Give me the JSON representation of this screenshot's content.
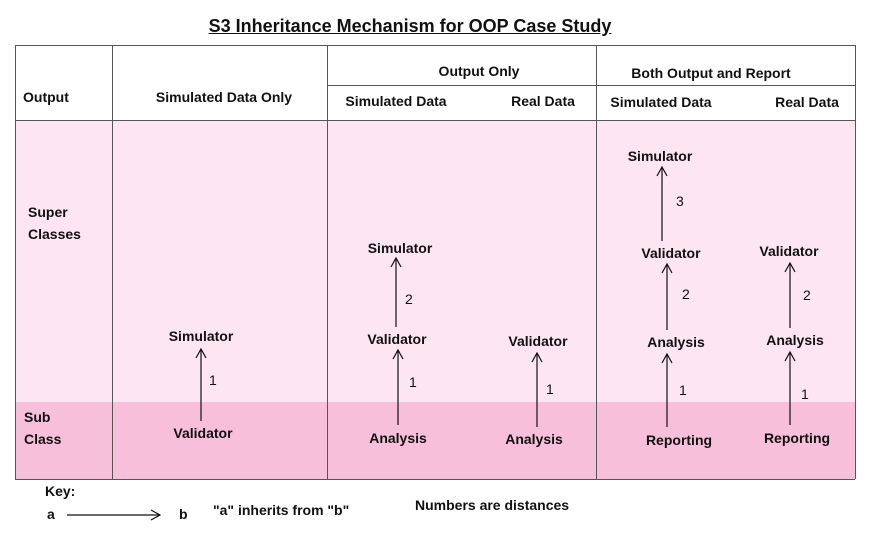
{
  "title": "S3 Inheritance Mechanism for OOP Case Study",
  "header": {
    "row_label": "Output",
    "groups": [
      "Output Only",
      "Both Output and Report"
    ],
    "columns": [
      "Simulated Data Only",
      "Simulated Data",
      "Real Data",
      "Simulated Data",
      "Real Data"
    ]
  },
  "rows": {
    "super": [
      "Super",
      "Classes"
    ],
    "sub": [
      "Sub",
      "Class"
    ]
  },
  "nodes": {
    "c1_simulator": "Simulator",
    "c1_validator": "Validator",
    "c2_simulator": "Simulator",
    "c2_validator": "Validator",
    "c2_analysis": "Analysis",
    "c3_validator": "Validator",
    "c3_analysis": "Analysis",
    "c4_simulator": "Simulator",
    "c4_validator": "Validator",
    "c4_analysis": "Analysis",
    "c4_reporting": "Reporting",
    "c5_validator": "Validator",
    "c5_analysis": "Analysis",
    "c5_reporting": "Reporting"
  },
  "distances": {
    "c1_a": "1",
    "c2_a": "1",
    "c2_b": "2",
    "c3_a": "1",
    "c4_a": "1",
    "c4_b": "2",
    "c4_c": "3",
    "c5_a": "1",
    "c5_b": "2"
  },
  "key": {
    "label": "Key:",
    "a": "a",
    "b": "b",
    "inherits_text": "\"a\" inherits from \"b\"",
    "note": "Numbers are distances"
  }
}
